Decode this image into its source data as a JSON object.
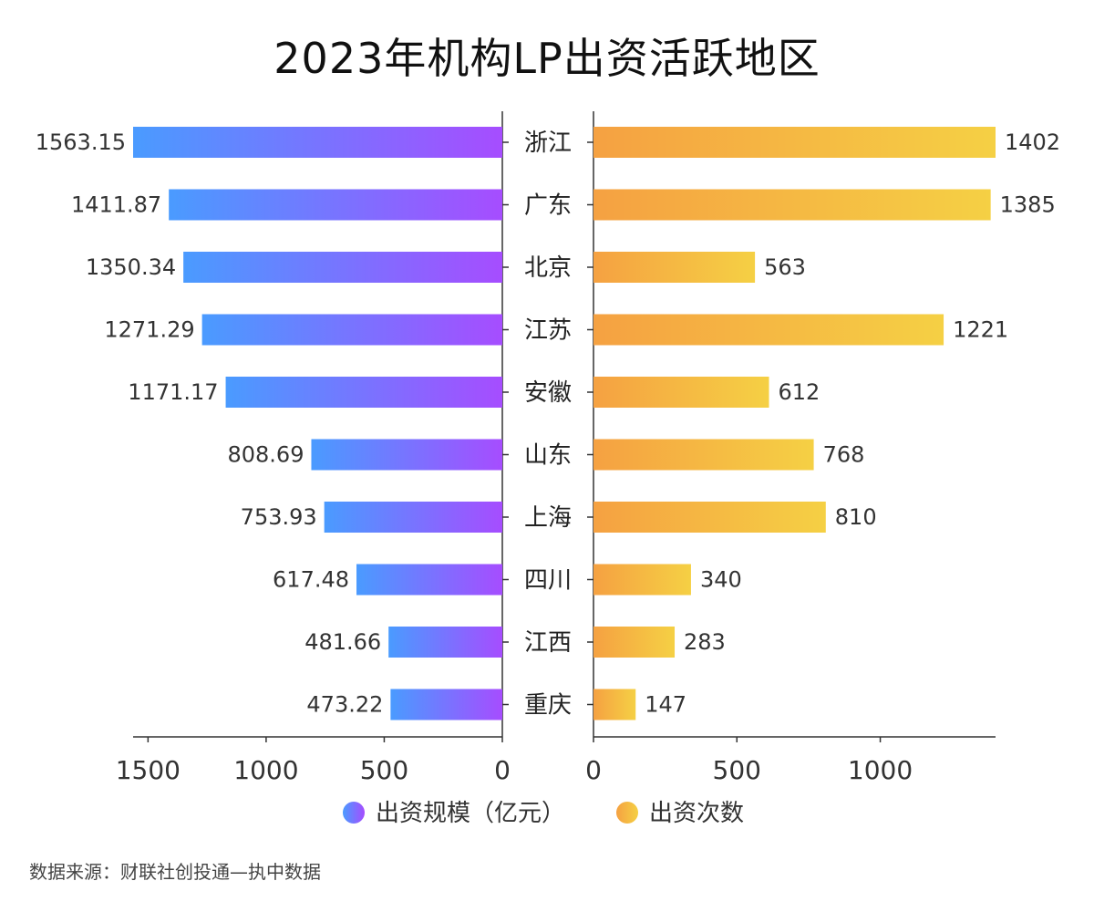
{
  "title": "2023年机构LP出资活跃地区",
  "source": "数据来源：财联社创投通—执中数据",
  "colors": {
    "left_start": "#4a9bff",
    "left_end": "#a64dff",
    "right_start": "#f5a142",
    "right_end": "#f5d044",
    "axis": "#333333"
  },
  "chart_data": {
    "type": "bar",
    "orientation": "horizontal-butterfly",
    "title": "2023年机构LP出资活跃地区",
    "categories": [
      "浙江",
      "广东",
      "北京",
      "江苏",
      "安徽",
      "山东",
      "上海",
      "四川",
      "江西",
      "重庆"
    ],
    "series": [
      {
        "name": "出资规模（亿元）",
        "side": "left",
        "values": [
          1563.15,
          1411.87,
          1350.34,
          1271.29,
          1171.17,
          808.69,
          753.93,
          617.48,
          481.66,
          473.22
        ],
        "labels": [
          "1563.15",
          "1411.87",
          "1350.34",
          "1271.29",
          "1171.17",
          "808.69",
          "753.93",
          "617.48",
          "481.66",
          "473.22"
        ],
        "xlim": [
          0,
          1600
        ],
        "ticks": [
          1500,
          1000,
          500,
          0
        ],
        "tick_labels": [
          "1500",
          "1000",
          "500",
          "0"
        ]
      },
      {
        "name": "出资次数",
        "side": "right",
        "values": [
          1402,
          1385,
          563,
          1221,
          612,
          768,
          810,
          340,
          283,
          147
        ],
        "labels": [
          "1402",
          "1385",
          "563",
          "1221",
          "612",
          "768",
          "810",
          "340",
          "283",
          "147"
        ],
        "xlim": [
          0,
          1402
        ],
        "ticks": [
          0,
          500,
          1000
        ],
        "tick_labels": [
          "0",
          "500",
          "1000"
        ]
      }
    ],
    "legend": [
      "出资规模（亿元）",
      "出资次数"
    ]
  }
}
